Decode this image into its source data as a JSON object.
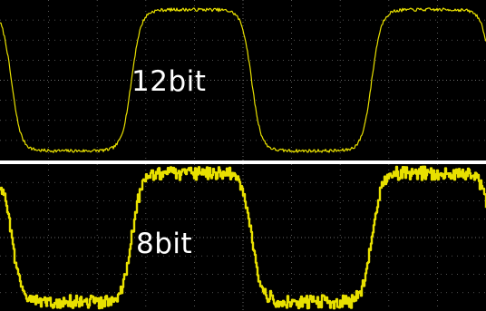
{
  "labels": {
    "top": "12bit",
    "bottom": "8bit"
  },
  "colors": {
    "background": "#000000",
    "trace": "#e8e000",
    "grid": "#6a6a6a",
    "label": "#ffffff"
  },
  "chart_data": [
    {
      "type": "line",
      "title": "",
      "annotation": "12bit",
      "grid": true,
      "xlim": [
        0,
        536
      ],
      "ylim": [
        -1,
        1
      ],
      "wave": {
        "shape": "rounded-square",
        "period": 265,
        "phase": 145,
        "amplitude": 0.88,
        "edge": 0.25,
        "noise": 0.02,
        "quantization_levels": 0
      }
    },
    {
      "type": "line",
      "title": "",
      "annotation": "8bit",
      "grid": true,
      "xlim": [
        0,
        536
      ],
      "ylim": [
        -1,
        1
      ],
      "wave": {
        "shape": "rounded-square",
        "period": 265,
        "phase": 145,
        "amplitude": 0.88,
        "edge": 0.25,
        "noise": 0.05,
        "quantization_levels": 12
      }
    }
  ]
}
